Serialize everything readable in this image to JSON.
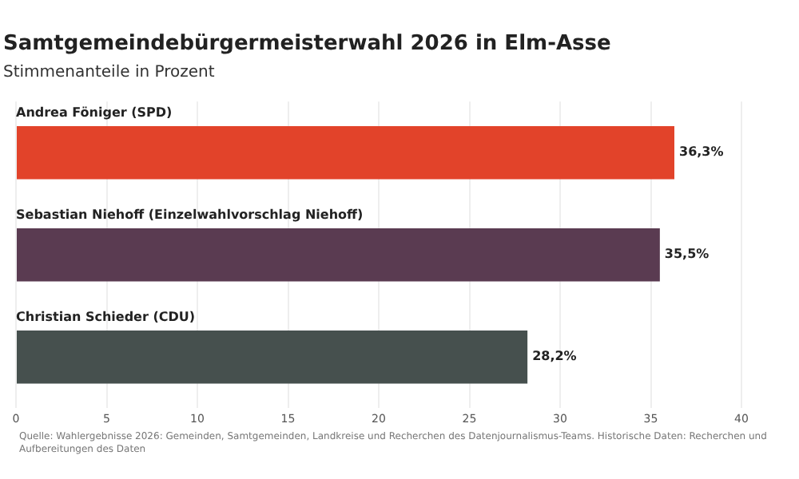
{
  "chart_data": {
    "type": "bar",
    "orientation": "horizontal",
    "title": "Samtgemeindebürgermeisterwahl 2026 in Elm-Asse",
    "subtitle": "Stimmenanteile in Prozent",
    "categories": [
      "Andrea Föniger (SPD)",
      "Sebastian Niehoff (Einzelwahlvorschlag Niehoff)",
      "Christian Schieder (CDU)"
    ],
    "values": [
      36.3,
      35.5,
      28.2
    ],
    "colors": [
      "#e2432a",
      "#5a3b51",
      "#46504e"
    ],
    "value_labels": [
      "36,3%",
      "35,5%",
      "28,2%"
    ],
    "xlim": [
      0,
      40
    ],
    "xticks": [
      0,
      5,
      10,
      15,
      20,
      25,
      30,
      35,
      40
    ],
    "grid": "x",
    "legend": false,
    "annotations": [
      "Quelle: Wahlergebnisse 2026: Gemeinden, Samtgemeinden, Landkreise und Recherchen des Datenjournalismus-Teams. Historische Daten: Recherchen und Aufbereitungen des Daten"
    ]
  }
}
